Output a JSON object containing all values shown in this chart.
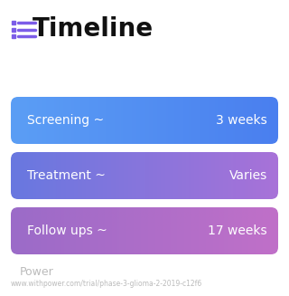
{
  "title": "Timeline",
  "title_fontsize": 20,
  "title_color": "#111111",
  "title_icon_color": "#7C5CE8",
  "background_color": "#ffffff",
  "rows": [
    {
      "label": "Screening ~",
      "value": "3 weeks",
      "color_left": "#5B9EF5",
      "color_right": "#4A7FEF"
    },
    {
      "label": "Treatment ~",
      "value": "Varies",
      "color_left": "#6878E0",
      "color_right": "#A872D8"
    },
    {
      "label": "Follow ups ~",
      "value": "17 weeks",
      "color_left": "#9B6BC8",
      "color_right": "#C070C8"
    }
  ],
  "row_text_color": "#ffffff",
  "row_label_fontsize": 10,
  "row_value_fontsize": 10,
  "footer_logo_text": "Power",
  "footer_url": "www.withpower.com/trial/phase-3-glioma-2-2019-c12f6",
  "footer_text_color": "#bbbbbb",
  "footer_logo_fontsize": 9,
  "footer_url_fontsize": 5.5
}
